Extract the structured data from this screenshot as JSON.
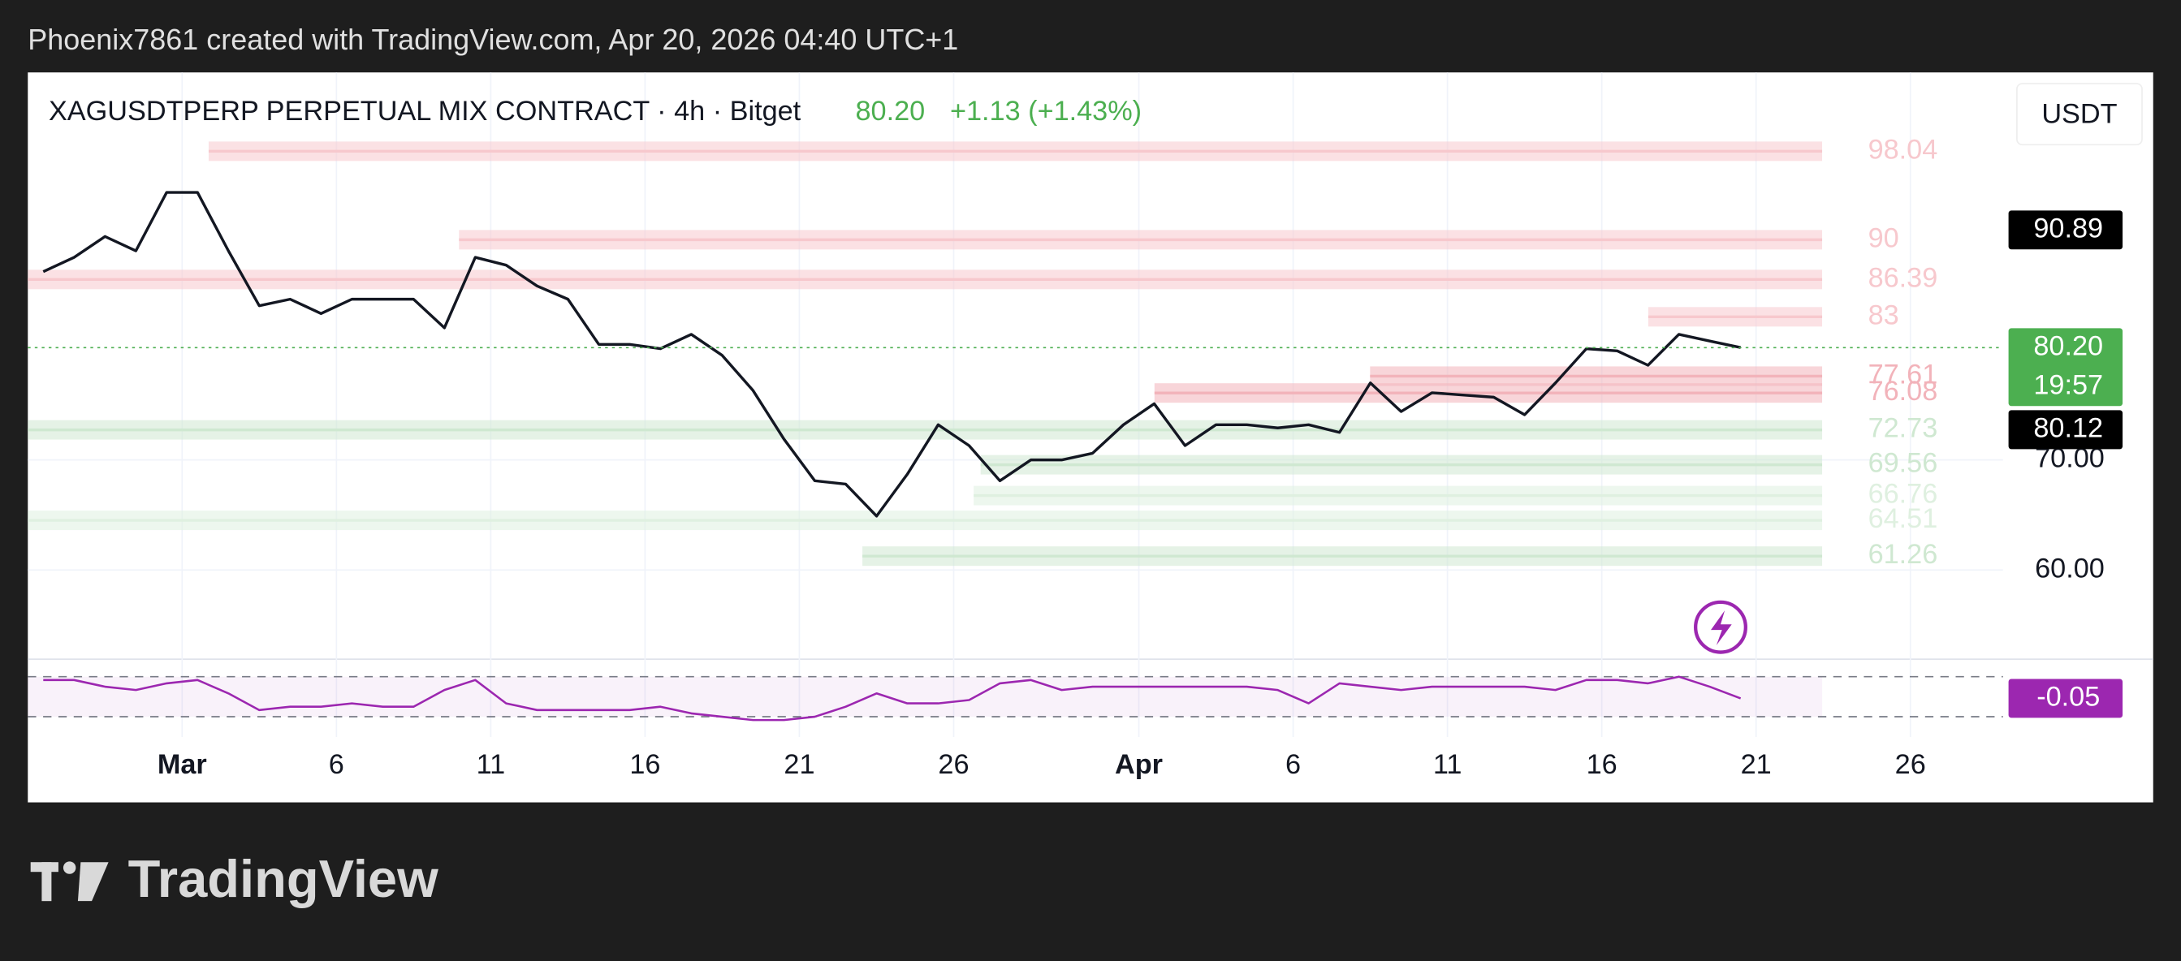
{
  "header": {
    "caption": "Phoenix7861 created with TradingView.com, Apr 20, 2026 04:40 UTC+1"
  },
  "chart_data": {
    "type": "line",
    "title": "XAGUSDTPERP PERPETUAL MIX CONTRACT · 4h · Bitget",
    "change": "+1.13 (+1.43%)",
    "currency": "USDT",
    "categories": [
      null,
      null,
      null,
      null,
      null,
      "Mar",
      null,
      null,
      null,
      null,
      "6",
      null,
      null,
      null,
      null,
      "11",
      null,
      null,
      null,
      null,
      "16",
      null,
      null,
      null,
      null,
      "21",
      null,
      null,
      null,
      null,
      "26",
      null,
      null,
      null,
      null,
      null,
      "Apr",
      null,
      null,
      null,
      null,
      "6",
      null,
      null,
      null,
      null,
      "11",
      null,
      null,
      null,
      null,
      "16",
      null,
      null,
      null,
      null,
      "21",
      null,
      null,
      null,
      null,
      "26",
      null,
      null
    ],
    "series": [
      {
        "color": "#131722",
        "values": [
          87.1,
          88.4,
          90.3,
          89,
          94.3,
          94.3,
          89,
          84,
          84.6,
          83.3,
          84.6,
          84.6,
          84.6,
          82,
          88.4,
          87.7,
          85.8,
          84.6,
          80.5,
          80.5,
          80.1,
          81.4,
          79.5,
          76.3,
          71.9,
          68.1,
          67.8,
          64.9,
          68.7,
          73.2,
          71.3,
          68.1,
          70,
          70,
          70.6,
          73.2,
          75.1,
          71.3,
          73.2,
          73.2,
          72.9,
          73.2,
          72.5,
          77,
          74.4,
          76.1,
          75.9,
          75.7,
          74.1,
          77,
          80.1,
          79.9,
          78.6,
          81.4,
          80.8,
          80.2,
          null,
          null,
          null,
          null,
          null,
          null,
          null,
          null
        ]
      }
    ],
    "ylim": [
      51.9,
      105.2
    ],
    "yticks": [
      {
        "value": 60,
        "label": "60.00"
      },
      {
        "value": 70,
        "label": "70.00"
      }
    ],
    "grid": true,
    "price_labels": [
      {
        "value": 90.89,
        "color": "#000000"
      },
      {
        "value": 80.2,
        "label": "80.20",
        "countdown": "19:57",
        "color": "#4caf50"
      },
      {
        "value": 80.12,
        "color": "#000000"
      }
    ],
    "levels": [
      {
        "value": 98.04,
        "color": "#f7c8cd"
      },
      {
        "value": 90,
        "color": "#f7c8cd"
      },
      {
        "value": 86.39,
        "color": "#f7c8cd"
      },
      {
        "value": 83,
        "color": "#f7c8cd"
      },
      {
        "value": 77.61,
        "color": "#f2b3ba"
      },
      {
        "value": 76.08,
        "color": "#f2b3ba"
      },
      {
        "value": 72.73,
        "color": "#cfe8d1"
      },
      {
        "value": 69.56,
        "color": "#cfe8d1"
      },
      {
        "value": 66.76,
        "color": "#dff0e0"
      },
      {
        "value": 64.51,
        "color": "#dff0e0"
      },
      {
        "value": 61.26,
        "color": "#cfe8d1"
      }
    ],
    "indicator": {
      "color": "#9c27b0",
      "ylim": [
        -1,
        1
      ],
      "last": -0.05,
      "values": [
        0.5,
        0.5,
        0.3,
        0.2,
        0.4,
        0.5,
        0.1,
        -0.4,
        -0.3,
        -0.3,
        -0.2,
        -0.3,
        -0.3,
        0.2,
        0.5,
        -0.2,
        -0.4,
        -0.4,
        -0.4,
        -0.4,
        -0.3,
        -0.5,
        -0.6,
        -0.7,
        -0.7,
        -0.6,
        -0.3,
        0.1,
        -0.2,
        -0.2,
        -0.1,
        0.4,
        0.5,
        0.2,
        0.3,
        0.3,
        0.3,
        0.3,
        0.3,
        0.3,
        0.2,
        -0.2,
        0.4,
        0.3,
        0.2,
        0.3,
        0.3,
        0.3,
        0.3,
        0.2,
        0.5,
        0.5,
        0.4,
        0.6,
        0.3,
        -0.05,
        null,
        null,
        null,
        null,
        null,
        null,
        null,
        null
      ]
    }
  },
  "footer": {
    "logo": "TradingView"
  }
}
